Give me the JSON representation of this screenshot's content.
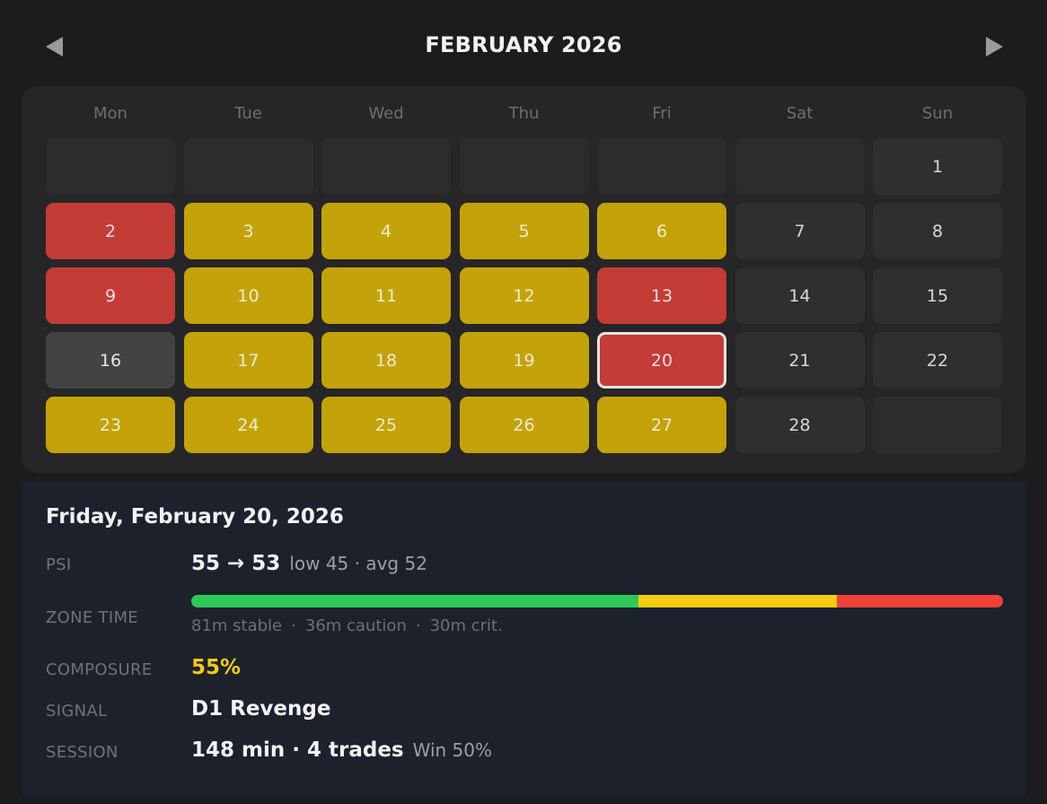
{
  "header": {
    "title": "FEBRUARY 2026",
    "prev_icon": "triangle-left-icon",
    "next_icon": "triangle-right-icon"
  },
  "calendar": {
    "weekdays": [
      "Mon",
      "Tue",
      "Wed",
      "Thu",
      "Fri",
      "Sat",
      "Sun"
    ],
    "status_colors": {
      "yellow": "#c4a20a",
      "red": "#c33c36",
      "neutral": "#2f2f31",
      "today": "#434345"
    },
    "days": [
      {
        "day": "",
        "status": "empty"
      },
      {
        "day": "",
        "status": "empty"
      },
      {
        "day": "",
        "status": "empty"
      },
      {
        "day": "",
        "status": "empty"
      },
      {
        "day": "",
        "status": "empty"
      },
      {
        "day": "",
        "status": "empty"
      },
      {
        "day": "1",
        "status": "neutral"
      },
      {
        "day": "2",
        "status": "red"
      },
      {
        "day": "3",
        "status": "yellow"
      },
      {
        "day": "4",
        "status": "yellow"
      },
      {
        "day": "5",
        "status": "yellow"
      },
      {
        "day": "6",
        "status": "yellow"
      },
      {
        "day": "7",
        "status": "neutral"
      },
      {
        "day": "8",
        "status": "neutral"
      },
      {
        "day": "9",
        "status": "red"
      },
      {
        "day": "10",
        "status": "yellow"
      },
      {
        "day": "11",
        "status": "yellow"
      },
      {
        "day": "12",
        "status": "yellow"
      },
      {
        "day": "13",
        "status": "red"
      },
      {
        "day": "14",
        "status": "neutral"
      },
      {
        "day": "15",
        "status": "neutral"
      },
      {
        "day": "16",
        "status": "today"
      },
      {
        "day": "17",
        "status": "yellow"
      },
      {
        "day": "18",
        "status": "yellow"
      },
      {
        "day": "19",
        "status": "yellow"
      },
      {
        "day": "20",
        "status": "red",
        "selected": true
      },
      {
        "day": "21",
        "status": "neutral"
      },
      {
        "day": "22",
        "status": "neutral"
      },
      {
        "day": "23",
        "status": "yellow"
      },
      {
        "day": "24",
        "status": "yellow"
      },
      {
        "day": "25",
        "status": "yellow"
      },
      {
        "day": "26",
        "status": "yellow"
      },
      {
        "day": "27",
        "status": "yellow"
      },
      {
        "day": "28",
        "status": "neutral"
      },
      {
        "day": "",
        "status": "empty"
      }
    ]
  },
  "detail": {
    "date": "Friday, February 20, 2026",
    "psi": {
      "label": "PSI",
      "value": "55 → 53",
      "sub": "low 45 · avg 52"
    },
    "zone_time": {
      "label": "ZONE TIME",
      "stable_minutes": 81,
      "caution_minutes": 36,
      "critical_minutes": 30,
      "stable_text": "81m stable",
      "caution_text": "36m caution",
      "critical_text": "30m crit.",
      "separator": "·",
      "colors": {
        "stable": "#2ec95a",
        "caution": "#f5cc0f",
        "critical": "#f2413a"
      }
    },
    "composure": {
      "label": "COMPOSURE",
      "value": "55%",
      "color": "#f5cc0f"
    },
    "signal": {
      "label": "SIGNAL",
      "value": "D1 Revenge"
    },
    "session": {
      "label": "SESSION",
      "value": "148 min · 4 trades",
      "sub": "Win 50%"
    }
  }
}
